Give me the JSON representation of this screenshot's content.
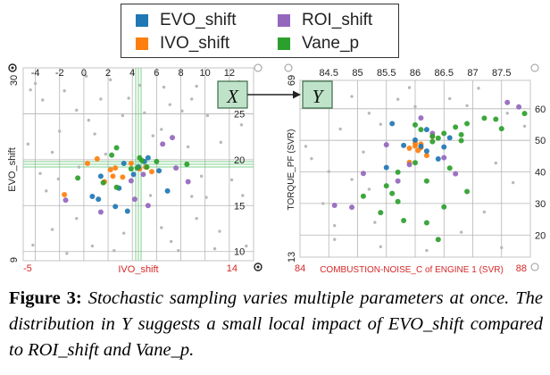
{
  "figure_caption": {
    "label": "Figure 3:",
    "text": "Stochastic sampling varies multiple parameters at once. The distribution in Y suggests a small local impact of EVO_shift compared to ROI_shift and Vane_p."
  },
  "legend": {
    "items": [
      {
        "label": "EVO_shift",
        "color": "#1f77b4"
      },
      {
        "label": "ROI_shift",
        "color": "#9467bd"
      },
      {
        "label": "IVO_shift",
        "color": "#ff7f0e"
      },
      {
        "label": "Vane_p",
        "color": "#2ca02c"
      }
    ]
  },
  "colors": {
    "accent_red": "#d62728",
    "grid": "#b5b5b5",
    "neutral_points": "#b8b8b8",
    "box_fill": "#bfe3c9",
    "box_border": "#3a6b47"
  },
  "chart_data": [
    {
      "type": "scatter",
      "panel": "X",
      "xlabel": "IVO_shift",
      "ylabel": "EVO_shift",
      "x_ticks": [
        "-4",
        "-2",
        "0",
        "2",
        "4",
        "6",
        "8",
        "10",
        "12"
      ],
      "right_ticks": [
        "25",
        "20",
        "15",
        "10"
      ],
      "xlim": [
        -5,
        14
      ],
      "ylim": [
        9,
        30
      ],
      "x_range_labels": [
        "-5",
        "14"
      ],
      "y_range_labels": [
        "30",
        "9"
      ],
      "crosshair": [
        4.5,
        19.5
      ],
      "grid": true,
      "highlight": {
        "IVO_shift": [
          [
            0.3,
            19.6
          ],
          [
            2.6,
            19.1
          ],
          [
            2.2,
            18.9
          ],
          [
            5.6,
            18.7
          ],
          [
            -1.6,
            16.2
          ],
          [
            3.2,
            18.1
          ],
          [
            3.9,
            19.6
          ],
          [
            1.7,
            17.6
          ],
          [
            1.1,
            20.1
          ],
          [
            5.1,
            19.2
          ],
          [
            2.4,
            18.2
          ],
          [
            4.6,
            19.0
          ]
        ],
        "EVO_shift": [
          [
            4.5,
            19.2
          ],
          [
            3.3,
            19.6
          ],
          [
            1.4,
            18.2
          ],
          [
            2.9,
            16.9
          ],
          [
            5.3,
            20.2
          ],
          [
            6.2,
            18.8
          ],
          [
            1.2,
            15.7
          ],
          [
            3.6,
            14.4
          ],
          [
            4.1,
            18.4
          ],
          [
            6.9,
            16.6
          ],
          [
            0.7,
            16.0
          ],
          [
            2.6,
            14.9
          ],
          [
            5.0,
            19.8
          ]
        ],
        "ROI_shift": [
          [
            7.6,
            19.1
          ],
          [
            6.5,
            21.7
          ],
          [
            4.2,
            15.7
          ],
          [
            5.3,
            15.0
          ],
          [
            4.9,
            18.4
          ],
          [
            7.3,
            22.4
          ],
          [
            -1.5,
            15.6
          ],
          [
            8.6,
            17.6
          ],
          [
            3.9,
            17.7
          ],
          [
            1.4,
            14.3
          ]
        ],
        "Vane_p": [
          [
            -0.5,
            18.0
          ],
          [
            2.3,
            20.5
          ],
          [
            6.0,
            19.8
          ],
          [
            1.6,
            17.5
          ],
          [
            3.9,
            19.0
          ],
          [
            2.7,
            21.3
          ],
          [
            8.5,
            19.5
          ],
          [
            5.2,
            19.2
          ],
          [
            4.8,
            19.9
          ],
          [
            4.6,
            20.2
          ],
          [
            4.4,
            19.1
          ],
          [
            2.7,
            17.0
          ]
        ]
      },
      "background_points": [
        [
          -4.4,
          27.6
        ],
        [
          -3.4,
          26.5
        ],
        [
          -4.0,
          28.3
        ],
        [
          -3.1,
          16.6
        ],
        [
          -2.6,
          12.4
        ],
        [
          -4.2,
          10.7
        ],
        [
          -2.0,
          23.1
        ],
        [
          -1.4,
          9.8
        ],
        [
          -4.6,
          21.7
        ],
        [
          -1.6,
          27.5
        ],
        [
          0.2,
          29.1
        ],
        [
          -0.6,
          25.4
        ],
        [
          0.9,
          22.8
        ],
        [
          -2.1,
          17.9
        ],
        [
          -0.6,
          13.6
        ],
        [
          -3.6,
          18.5
        ],
        [
          0.7,
          10.6
        ],
        [
          1.4,
          26.6
        ],
        [
          2.2,
          28.7
        ],
        [
          3.2,
          24.8
        ],
        [
          2.5,
          10.1
        ],
        [
          3.7,
          26.7
        ],
        [
          1.8,
          20.6
        ],
        [
          3.3,
          12.0
        ],
        [
          4.6,
          28.1
        ],
        [
          6.6,
          27.9
        ],
        [
          5.0,
          25.1
        ],
        [
          5.7,
          22.6
        ],
        [
          6.4,
          12.6
        ],
        [
          7.2,
          11.1
        ],
        [
          7.1,
          26.0
        ],
        [
          8.1,
          25.3
        ],
        [
          9.3,
          28.0
        ],
        [
          8.6,
          21.4
        ],
        [
          10.2,
          24.8
        ],
        [
          9.7,
          18.2
        ],
        [
          9.3,
          13.6
        ],
        [
          11.6,
          26.6
        ],
        [
          12.2,
          17.8
        ],
        [
          13.0,
          23.8
        ],
        [
          11.2,
          12.2
        ],
        [
          10.8,
          10.3
        ],
        [
          13.1,
          16.1
        ],
        [
          12.8,
          28.5
        ],
        [
          11.3,
          21.9
        ],
        [
          10.1,
          15.9
        ],
        [
          5.5,
          16.1
        ],
        [
          -2.6,
          20.8
        ],
        [
          -0.4,
          19.2
        ],
        [
          6.4,
          23.3
        ],
        [
          7.8,
          10.1
        ],
        [
          8.9,
          16.0
        ],
        [
          13.4,
          10.6
        ],
        [
          0.4,
          24.3
        ],
        [
          8.9,
          26.6
        ]
      ]
    },
    {
      "type": "scatter",
      "panel": "Y",
      "xlabel": "COMBUSTION-NOISE_C of ENGINE 1 (SVR)",
      "ylabel": "TORQUE_PF (SVR)",
      "x_ticks": [
        "84.5",
        "85",
        "85.5",
        "86",
        "86.5",
        "87",
        "87.5"
      ],
      "y_ticks": [
        "60",
        "50",
        "40",
        "30",
        "20"
      ],
      "xlim": [
        84,
        88
      ],
      "ylim": [
        13,
        69
      ],
      "x_range_labels": [
        "84",
        "88"
      ],
      "y_range_labels": [
        "69",
        "13"
      ],
      "grid": true,
      "highlight": {
        "IVO_shift": [
          [
            86.0,
            48.2
          ],
          [
            86.1,
            47.7
          ],
          [
            86.0,
            49.1
          ],
          [
            85.9,
            47.5
          ],
          [
            86.05,
            46.8
          ],
          [
            86.2,
            45.2
          ],
          [
            85.9,
            43.0
          ],
          [
            86.3,
            51.2
          ],
          [
            86.1,
            48.8
          ]
        ],
        "EVO_shift": [
          [
            85.6,
            55.3
          ],
          [
            86.2,
            53.4
          ],
          [
            86.6,
            50.8
          ],
          [
            85.5,
            41.4
          ],
          [
            86.5,
            47.9
          ],
          [
            85.8,
            48.4
          ],
          [
            86.4,
            44.1
          ],
          [
            86.0,
            50.1
          ],
          [
            86.1,
            48.1
          ],
          [
            86.2,
            46.6
          ]
        ],
        "ROI_shift": [
          [
            84.6,
            29.4
          ],
          [
            85.1,
            39.5
          ],
          [
            84.9,
            28.8
          ],
          [
            85.7,
            37.1
          ],
          [
            86.7,
            39.4
          ],
          [
            87.8,
            60.6
          ],
          [
            87.6,
            62.0
          ],
          [
            85.9,
            42.3
          ],
          [
            86.3,
            52.2
          ],
          [
            85.5,
            48.6
          ],
          [
            86.5,
            44.5
          ],
          [
            86.1,
            57.1
          ]
        ],
        "Vane_p": [
          [
            86.9,
            55.3
          ],
          [
            86.5,
            52.2
          ],
          [
            87.2,
            57.0
          ],
          [
            87.4,
            56.7
          ],
          [
            86.7,
            54.2
          ],
          [
            86.8,
            51.8
          ],
          [
            86.3,
            51.3
          ],
          [
            86.0,
            54.9
          ],
          [
            86.4,
            50.7
          ],
          [
            87.9,
            58.5
          ],
          [
            86.1,
            53.4
          ],
          [
            85.7,
            39.9
          ],
          [
            85.5,
            35.6
          ],
          [
            85.6,
            33.2
          ],
          [
            85.8,
            24.6
          ],
          [
            86.2,
            23.9
          ],
          [
            86.4,
            18.6
          ],
          [
            85.4,
            27.1
          ],
          [
            86.5,
            28.9
          ],
          [
            86.9,
            33.8
          ],
          [
            86.2,
            37.1
          ],
          [
            85.7,
            30.6
          ],
          [
            86.0,
            42.9
          ],
          [
            85.1,
            32.3
          ],
          [
            86.6,
            41.2
          ],
          [
            86.8,
            49.9
          ],
          [
            87.5,
            53.7
          ],
          [
            86.3,
            49.6
          ]
        ]
      },
      "background_points": [
        [
          84.1,
          48.1
        ],
        [
          84.3,
          62.2
        ],
        [
          84.2,
          44.2
        ],
        [
          84.7,
          53.6
        ],
        [
          84.4,
          30.0
        ],
        [
          84.9,
          37.6
        ],
        [
          84.6,
          18.6
        ],
        [
          85.2,
          58.6
        ],
        [
          85.4,
          55.1
        ],
        [
          85.1,
          46.3
        ],
        [
          85.3,
          24.0
        ],
        [
          84.9,
          63.9
        ],
        [
          85.7,
          63.0
        ],
        [
          86.0,
          60.7
        ],
        [
          86.6,
          63.2
        ],
        [
          87.1,
          66.5
        ],
        [
          87.6,
          58.6
        ],
        [
          87.9,
          54.5
        ],
        [
          87.4,
          42.8
        ],
        [
          87.7,
          36.6
        ],
        [
          87.2,
          27.3
        ],
        [
          86.8,
          20.9
        ],
        [
          87.5,
          16.0
        ],
        [
          86.2,
          15.1
        ],
        [
          85.4,
          16.3
        ],
        [
          84.6,
          23.0
        ],
        [
          85.2,
          34.5
        ],
        [
          84.5,
          40.1
        ],
        [
          86.9,
          61.0
        ],
        [
          85.9,
          66.7
        ]
      ]
    }
  ]
}
